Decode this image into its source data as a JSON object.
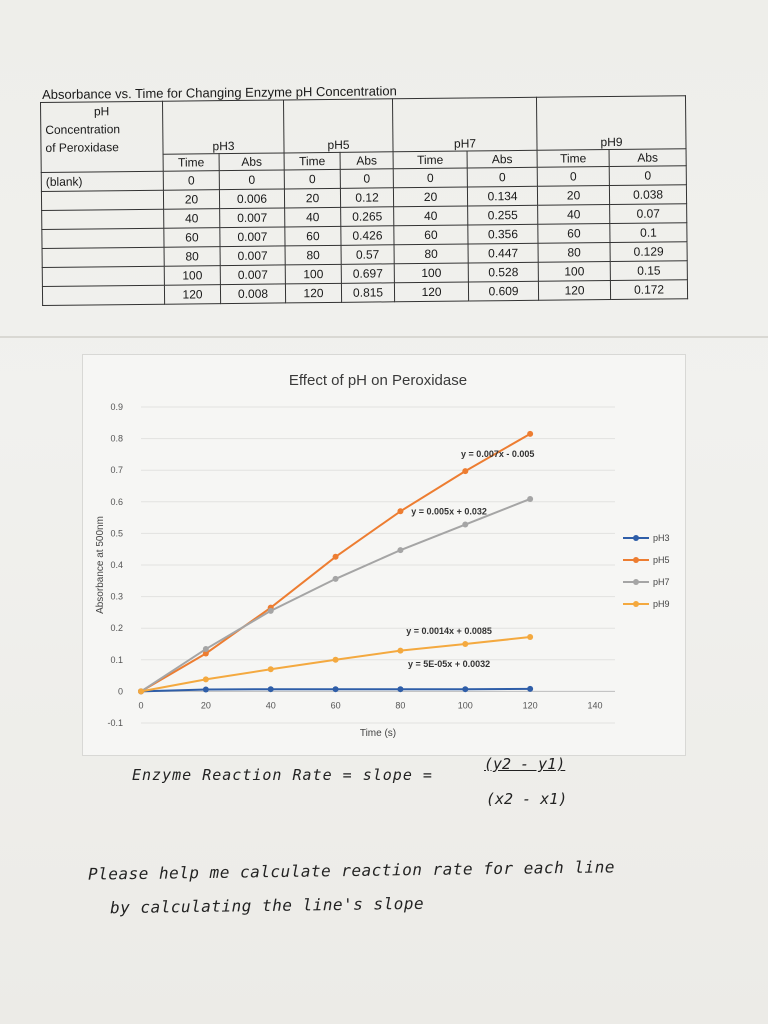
{
  "table": {
    "title": "Absorbance vs. Time for Changing Enzyme pH Concentration",
    "corner_header_lines": [
      "pH",
      "Concentration",
      "of Peroxidase"
    ],
    "groups": [
      "pH3",
      "pH5",
      "pH7",
      "pH9"
    ],
    "subheaders": [
      "Time",
      "Abs"
    ],
    "rows": [
      {
        "label": "(blank)",
        "cells": [
          "0",
          "0",
          "0",
          "0",
          "0",
          "0",
          "0",
          "0"
        ]
      },
      {
        "label": "",
        "cells": [
          "20",
          "0.006",
          "20",
          "0.12",
          "20",
          "0.134",
          "20",
          "0.038"
        ]
      },
      {
        "label": "",
        "cells": [
          "40",
          "0.007",
          "40",
          "0.265",
          "40",
          "0.255",
          "40",
          "0.07"
        ]
      },
      {
        "label": "",
        "cells": [
          "60",
          "0.007",
          "60",
          "0.426",
          "60",
          "0.356",
          "60",
          "0.1"
        ]
      },
      {
        "label": "",
        "cells": [
          "80",
          "0.007",
          "80",
          "0.57",
          "80",
          "0.447",
          "80",
          "0.129"
        ]
      },
      {
        "label": "",
        "cells": [
          "100",
          "0.007",
          "100",
          "0.697",
          "100",
          "0.528",
          "100",
          "0.15"
        ]
      },
      {
        "label": "",
        "cells": [
          "120",
          "0.008",
          "120",
          "0.815",
          "120",
          "0.609",
          "120",
          "0.172"
        ]
      }
    ]
  },
  "chart_data": {
    "type": "line",
    "title": "Effect of  pH on Peroxidase",
    "xlabel": "Time (s)",
    "ylabel": "Absorbance at 500nm",
    "xlim": [
      0,
      140
    ],
    "ylim": [
      -0.1,
      0.9
    ],
    "x_ticks": [
      0,
      20,
      40,
      60,
      80,
      100,
      120,
      140
    ],
    "y_ticks": [
      -0.1,
      0,
      0.1,
      0.2,
      0.3,
      0.4,
      0.5,
      0.6,
      0.7,
      0.8,
      0.9
    ],
    "y_tick_labels": [
      "-0.1",
      "0",
      "0.1",
      "0.2",
      "0.3",
      "0.4",
      "0.5",
      "0.6",
      "0.7",
      "0.8",
      "0.9"
    ],
    "grid": "horizontal",
    "legend": "right",
    "x": [
      0,
      20,
      40,
      60,
      80,
      100,
      120
    ],
    "series": [
      {
        "name": "pH3",
        "color": "#2f5ea8",
        "values": [
          0,
          0.006,
          0.007,
          0.007,
          0.007,
          0.007,
          0.008
        ]
      },
      {
        "name": "pH5",
        "color": "#ed7d31",
        "values": [
          0,
          0.12,
          0.265,
          0.426,
          0.57,
          0.697,
          0.815
        ]
      },
      {
        "name": "pH7",
        "color": "#a5a5a5",
        "values": [
          0,
          0.134,
          0.255,
          0.356,
          0.447,
          0.528,
          0.609
        ]
      },
      {
        "name": "pH9",
        "color": "#f4a93f",
        "values": [
          0,
          0.038,
          0.07,
          0.1,
          0.129,
          0.15,
          0.172
        ]
      }
    ],
    "trendline_equations": [
      {
        "series": "pH5",
        "text": "y = 0.007x - 0.005"
      },
      {
        "series": "pH7",
        "text": "y = 0.005x + 0.032"
      },
      {
        "series": "pH9",
        "text": "y = 0.0014x + 0.0085"
      },
      {
        "series": "pH3",
        "text": "y = 5E-05x + 0.0032"
      }
    ]
  },
  "handwriting": {
    "formula_lhs": "Enzyme Reaction Rate = slope =",
    "formula_numerator": "(y2 - y1)",
    "formula_denominator": "(x2 - x1)",
    "note_line1": "Please help me calculate reaction rate for each line",
    "note_line2": "by calculating the line's slope"
  }
}
